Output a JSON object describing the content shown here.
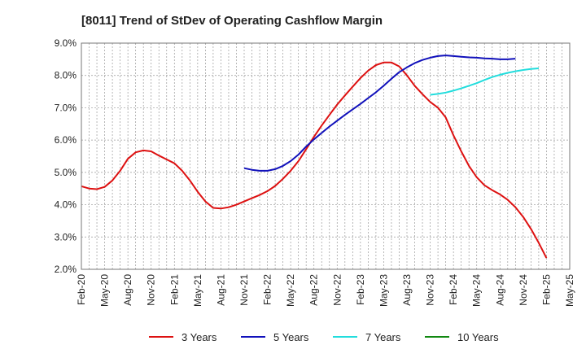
{
  "chart_data": {
    "type": "line",
    "title": "[8011]  Trend of StDev of Operating Cashflow Margin",
    "xlabel": "",
    "ylabel": "",
    "x_ticks": [
      "Feb-20",
      "May-20",
      "Aug-20",
      "Nov-20",
      "Feb-21",
      "May-21",
      "Aug-21",
      "Nov-21",
      "Feb-22",
      "May-22",
      "Aug-22",
      "Nov-22",
      "Feb-23",
      "May-23",
      "Aug-23",
      "Nov-23",
      "Feb-24",
      "May-24",
      "Aug-24",
      "Nov-24",
      "Feb-25",
      "May-25"
    ],
    "y_ticks": [
      "2.0%",
      "3.0%",
      "4.0%",
      "5.0%",
      "6.0%",
      "7.0%",
      "8.0%",
      "9.0%"
    ],
    "ylim": [
      2.0,
      9.0
    ],
    "grid": true,
    "legend_position": "bottom",
    "series": [
      {
        "name": "3 Years",
        "color": "#dd1111",
        "start_month": "Feb-20",
        "values": [
          4.57,
          4.5,
          4.48,
          4.55,
          4.75,
          5.05,
          5.42,
          5.62,
          5.68,
          5.65,
          5.52,
          5.4,
          5.28,
          5.05,
          4.75,
          4.4,
          4.1,
          3.9,
          3.88,
          3.92,
          4.0,
          4.1,
          4.2,
          4.3,
          4.42,
          4.58,
          4.8,
          5.05,
          5.35,
          5.72,
          6.1,
          6.45,
          6.78,
          7.1,
          7.38,
          7.65,
          7.92,
          8.15,
          8.32,
          8.4,
          8.4,
          8.28,
          8.0,
          7.68,
          7.42,
          7.18,
          7.0,
          6.7,
          6.15,
          5.65,
          5.2,
          4.85,
          4.6,
          4.45,
          4.32,
          4.15,
          3.92,
          3.62,
          3.25,
          2.82,
          2.35
        ]
      },
      {
        "name": "5 Years",
        "color": "#1111bb",
        "start_month": "Nov-21",
        "values": [
          5.13,
          5.08,
          5.05,
          5.05,
          5.1,
          5.2,
          5.35,
          5.55,
          5.8,
          6.02,
          6.22,
          6.42,
          6.6,
          6.78,
          6.95,
          7.12,
          7.3,
          7.48,
          7.68,
          7.9,
          8.1,
          8.25,
          8.38,
          8.48,
          8.55,
          8.6,
          8.62,
          8.6,
          8.58,
          8.56,
          8.55,
          8.53,
          8.52,
          8.5,
          8.5,
          8.52
        ]
      },
      {
        "name": "7 Years",
        "color": "#22dddd",
        "start_month": "Nov-23",
        "values": [
          7.4,
          7.43,
          7.47,
          7.53,
          7.6,
          7.68,
          7.76,
          7.86,
          7.95,
          8.02,
          8.08,
          8.13,
          8.17,
          8.2,
          8.22
        ]
      },
      {
        "name": "10 Years",
        "color": "#118811",
        "start_month": "",
        "values": []
      }
    ]
  }
}
